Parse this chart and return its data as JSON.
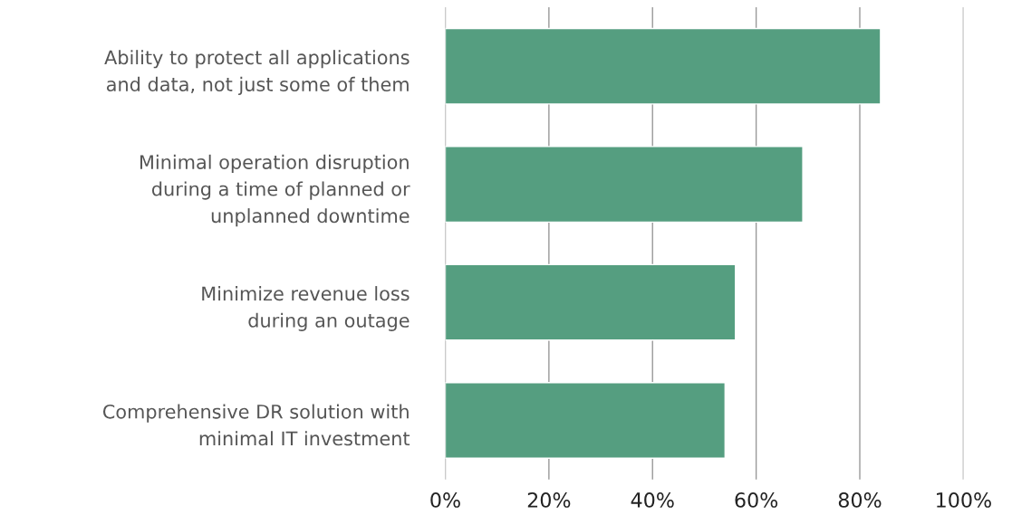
{
  "chart_data": {
    "type": "bar",
    "orientation": "horizontal",
    "categories": [
      "Ability to protect all applications\nand data, not just some of them",
      "Minimal operation disruption\nduring a time of planned or\nunplanned downtime",
      "Minimize revenue loss\nduring an outage",
      "Comprehensive DR solution with\nminimal IT investment"
    ],
    "values": [
      84,
      69,
      56,
      54
    ],
    "color": "#559e80",
    "xlim": [
      0,
      100
    ],
    "xticks": [
      {
        "value": 0,
        "label": "0%"
      },
      {
        "value": 20,
        "label": "20%"
      },
      {
        "value": 40,
        "label": "40%"
      },
      {
        "value": 60,
        "label": "60%"
      },
      {
        "value": 80,
        "label": "80%"
      },
      {
        "value": 100,
        "label": "100%"
      }
    ],
    "grid": "x"
  }
}
